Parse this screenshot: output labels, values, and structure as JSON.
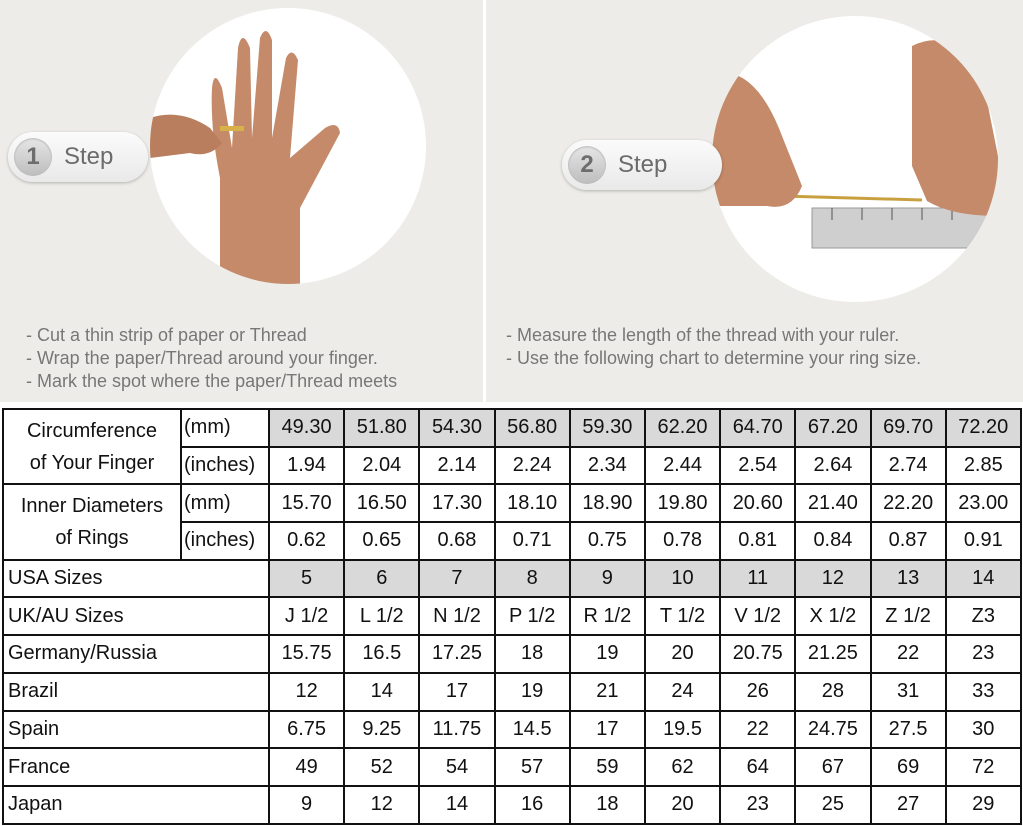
{
  "step1": {
    "number": "1",
    "label": "Step",
    "instructions": [
      "- Cut a thin strip of paper or Thread",
      "- Wrap the paper/Thread around your finger.",
      "- Mark the spot where the paper/Thread meets"
    ]
  },
  "step2": {
    "number": "2",
    "label": "Step",
    "instructions": [
      "- Measure the length of the thread with your ruler.",
      "- Use the following chart to determine your ring size."
    ]
  },
  "table": {
    "circumference": {
      "label_line1": "Circumference",
      "label_line2": "of Your Finger",
      "unit_mm": "(mm)",
      "unit_in": "(inches)",
      "mm": [
        "49.30",
        "51.80",
        "54.30",
        "56.80",
        "59.30",
        "62.20",
        "64.70",
        "67.20",
        "69.70",
        "72.20"
      ],
      "inches": [
        "1.94",
        "2.04",
        "2.14",
        "2.24",
        "2.34",
        "2.44",
        "2.54",
        "2.64",
        "2.74",
        "2.85"
      ]
    },
    "inner": {
      "label_line1": "Inner Diameters",
      "label_line2": "of Rings",
      "unit_mm": "(mm)",
      "unit_in": "(inches)",
      "mm": [
        "15.70",
        "16.50",
        "17.30",
        "18.10",
        "18.90",
        "19.80",
        "20.60",
        "21.40",
        "22.20",
        "23.00"
      ],
      "inches": [
        "0.62",
        "0.65",
        "0.68",
        "0.71",
        "0.75",
        "0.78",
        "0.81",
        "0.84",
        "0.87",
        "0.91"
      ]
    },
    "rows": [
      {
        "label": "USA Sizes",
        "values": [
          "5",
          "6",
          "7",
          "8",
          "9",
          "10",
          "11",
          "12",
          "13",
          "14"
        ]
      },
      {
        "label": "UK/AU Sizes",
        "values": [
          "J 1/2",
          "L 1/2",
          "N 1/2",
          "P 1/2",
          "R 1/2",
          "T 1/2",
          "V 1/2",
          "X 1/2",
          "Z 1/2",
          "Z3"
        ]
      },
      {
        "label": "Germany/Russia",
        "values": [
          "15.75",
          "16.5",
          "17.25",
          "18",
          "19",
          "20",
          "20.75",
          "21.25",
          "22",
          "23"
        ]
      },
      {
        "label": "Brazil",
        "values": [
          "12",
          "14",
          "17",
          "19",
          "21",
          "24",
          "26",
          "28",
          "31",
          "33"
        ]
      },
      {
        "label": "Spain",
        "values": [
          "6.75",
          "9.25",
          "11.75",
          "14.5",
          "17",
          "19.5",
          "22",
          "24.75",
          "27.5",
          "30"
        ]
      },
      {
        "label": "France",
        "values": [
          "49",
          "52",
          "54",
          "57",
          "59",
          "62",
          "64",
          "67",
          "69",
          "72"
        ]
      },
      {
        "label": "Japan",
        "values": [
          "9",
          "12",
          "14",
          "16",
          "18",
          "20",
          "23",
          "25",
          "27",
          "29"
        ]
      }
    ],
    "highlight_color": "#d9d9d9"
  }
}
